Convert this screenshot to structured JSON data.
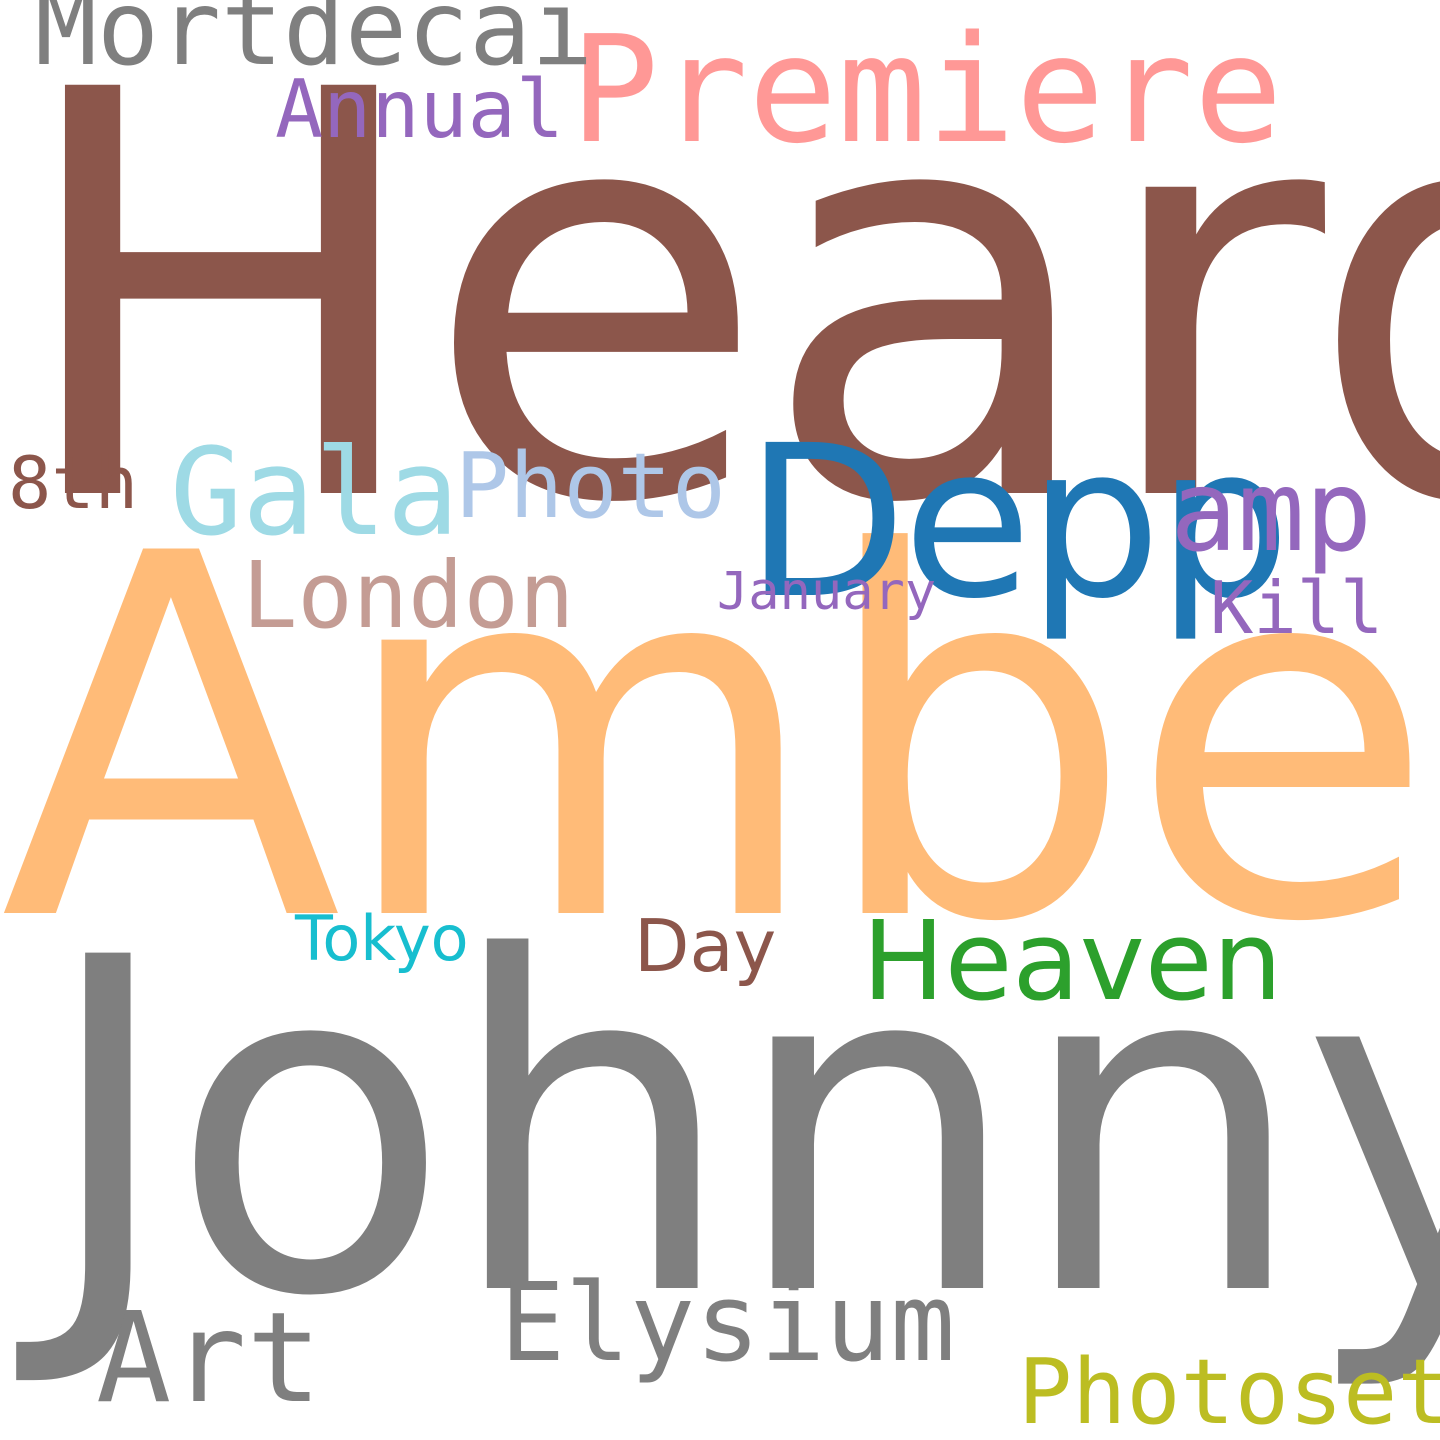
{
  "background": "#ffffff",
  "words": {
    "heard": {
      "text": "Heard",
      "color": "#8c564b"
    },
    "amber": {
      "text": "Amber",
      "color": "#ffbb78"
    },
    "johnny": {
      "text": "Johnny",
      "color": "#7f7f7f"
    },
    "depp": {
      "text": "Depp",
      "color": "#1f77b4"
    },
    "premiere": {
      "text": "Premiere",
      "color": "#ff9896"
    },
    "mortdecai": {
      "text": "Mortdecai",
      "color": "#7f7f7f"
    },
    "annual": {
      "text": "Annual",
      "color": "#9467bd"
    },
    "eighth": {
      "text": "8th",
      "color": "#8c564b"
    },
    "gala": {
      "text": "Gala",
      "color": "#9edae5"
    },
    "photo": {
      "text": "Photo",
      "color": "#aec7e8"
    },
    "amp": {
      "text": "amp",
      "color": "#9467bd"
    },
    "london": {
      "text": "London",
      "color": "#c49c94"
    },
    "january": {
      "text": "January",
      "color": "#9467bd"
    },
    "kill": {
      "text": "Kill",
      "color": "#9467bd"
    },
    "tokyo": {
      "text": "Tokyo",
      "color": "#17becf"
    },
    "day": {
      "text": "Day",
      "color": "#8c564b"
    },
    "heaven": {
      "text": "Heaven",
      "color": "#2ca02c"
    },
    "elysium": {
      "text": "Elysium",
      "color": "#7f7f7f"
    },
    "art": {
      "text": "Art",
      "color": "#7f7f7f"
    },
    "photoset": {
      "text": "Photoset",
      "color": "#bcbd22"
    }
  }
}
